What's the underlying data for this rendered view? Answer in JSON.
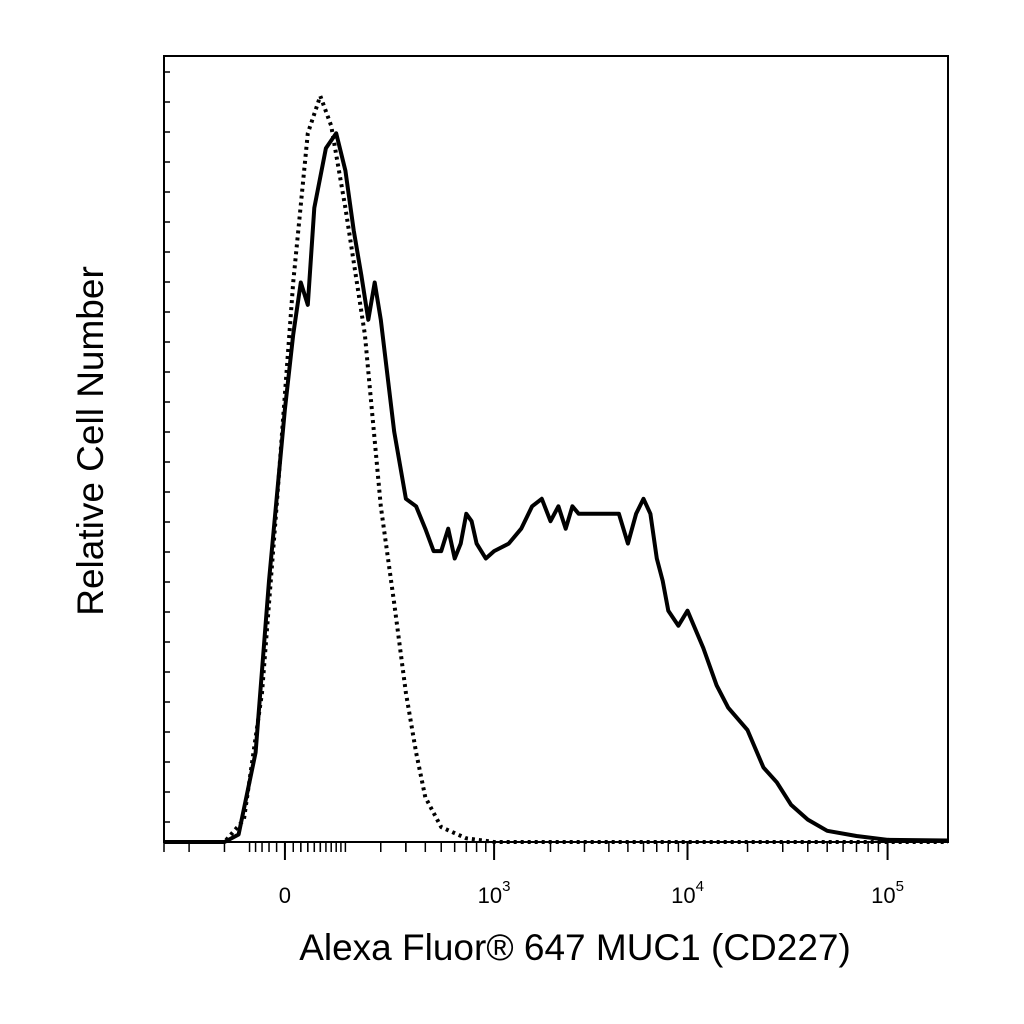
{
  "chart_data": {
    "type": "line",
    "title": "",
    "xlabel": "Alexa Fluor® 647 MUC1 (CD227)",
    "ylabel": "Relative Cell Number",
    "x_scale": "biexponential",
    "x_ticks": [
      {
        "value": 0,
        "base": "0",
        "exp": ""
      },
      {
        "value": 1000,
        "base": "10",
        "exp": "3"
      },
      {
        "value": 10000,
        "base": "10",
        "exp": "4"
      },
      {
        "value": 100000,
        "base": "10",
        "exp": "5"
      }
    ],
    "xlim": [
      -300,
      200000
    ],
    "ylim": [
      0,
      100
    ],
    "grid": false,
    "legend": "none",
    "line_color": "#000000",
    "series": [
      {
        "style": "dotted",
        "points": [
          [
            -300,
            0
          ],
          [
            -100,
            0
          ],
          [
            -60,
            3
          ],
          [
            -30,
            20
          ],
          [
            -10,
            45
          ],
          [
            10,
            75
          ],
          [
            30,
            95
          ],
          [
            50,
            100
          ],
          [
            70,
            96
          ],
          [
            100,
            85
          ],
          [
            150,
            68
          ],
          [
            200,
            45
          ],
          [
            250,
            32
          ],
          [
            300,
            20
          ],
          [
            350,
            12
          ],
          [
            400,
            6
          ],
          [
            500,
            2
          ],
          [
            700,
            0.5
          ],
          [
            1000,
            0
          ],
          [
            200000,
            0
          ]
        ]
      },
      {
        "style": "solid",
        "points": [
          [
            -300,
            0
          ],
          [
            -100,
            0
          ],
          [
            -70,
            1
          ],
          [
            -40,
            12
          ],
          [
            -20,
            35
          ],
          [
            0,
            58
          ],
          [
            10,
            68
          ],
          [
            20,
            75
          ],
          [
            30,
            72
          ],
          [
            40,
            85
          ],
          [
            60,
            93
          ],
          [
            80,
            95
          ],
          [
            100,
            90
          ],
          [
            120,
            82
          ],
          [
            140,
            76
          ],
          [
            160,
            70
          ],
          [
            180,
            75
          ],
          [
            200,
            70
          ],
          [
            250,
            55
          ],
          [
            300,
            46
          ],
          [
            350,
            45
          ],
          [
            400,
            42
          ],
          [
            450,
            39
          ],
          [
            500,
            39
          ],
          [
            550,
            42
          ],
          [
            600,
            38
          ],
          [
            650,
            40
          ],
          [
            700,
            44
          ],
          [
            750,
            43
          ],
          [
            800,
            40
          ],
          [
            900,
            38
          ],
          [
            1000,
            39
          ],
          [
            1200,
            40
          ],
          [
            1400,
            42
          ],
          [
            1600,
            45
          ],
          [
            1800,
            46
          ],
          [
            2000,
            43
          ],
          [
            2200,
            45
          ],
          [
            2400,
            42
          ],
          [
            2600,
            45
          ],
          [
            2800,
            44
          ],
          [
            3000,
            44
          ],
          [
            3500,
            44
          ],
          [
            4000,
            44
          ],
          [
            4500,
            44
          ],
          [
            5000,
            40
          ],
          [
            5500,
            44
          ],
          [
            6000,
            46
          ],
          [
            6500,
            44
          ],
          [
            7000,
            38
          ],
          [
            7500,
            35
          ],
          [
            8000,
            31
          ],
          [
            9000,
            29
          ],
          [
            10000,
            31
          ],
          [
            12000,
            26
          ],
          [
            14000,
            21
          ],
          [
            16000,
            18
          ],
          [
            20000,
            15
          ],
          [
            24000,
            10
          ],
          [
            28000,
            8
          ],
          [
            33000,
            5
          ],
          [
            40000,
            3
          ],
          [
            50000,
            1.5
          ],
          [
            70000,
            0.8
          ],
          [
            100000,
            0.3
          ],
          [
            200000,
            0.2
          ]
        ]
      }
    ]
  }
}
